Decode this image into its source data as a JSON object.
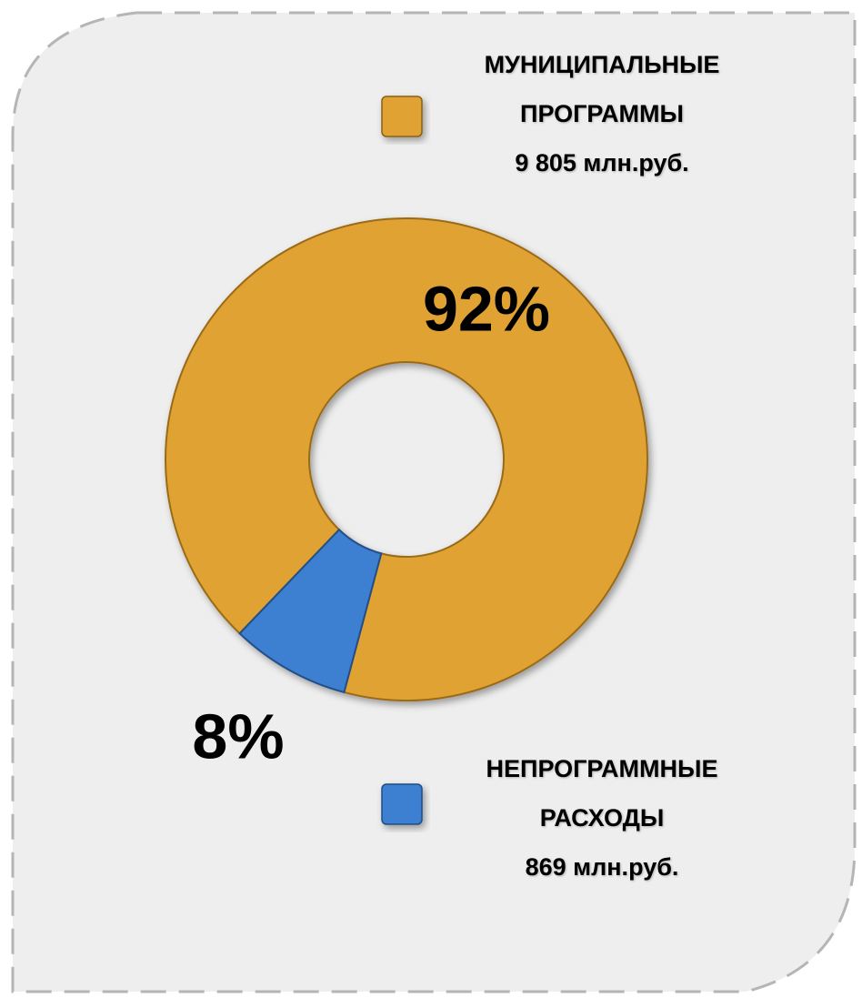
{
  "chart_data": {
    "type": "donut",
    "categories": [
      "МУНИЦИПАЛЬНЫЕ ПРОГРАММЫ",
      "НЕПРОГРАММНЫЕ РАСХОДЫ"
    ],
    "values": [
      92,
      8
    ],
    "value_labels": [
      "92%",
      "8%"
    ],
    "amount_labels": [
      "9 805 млн.руб.",
      "869 млн.руб."
    ],
    "colors": [
      "#e0a232",
      "#3d7fd0"
    ]
  }
}
